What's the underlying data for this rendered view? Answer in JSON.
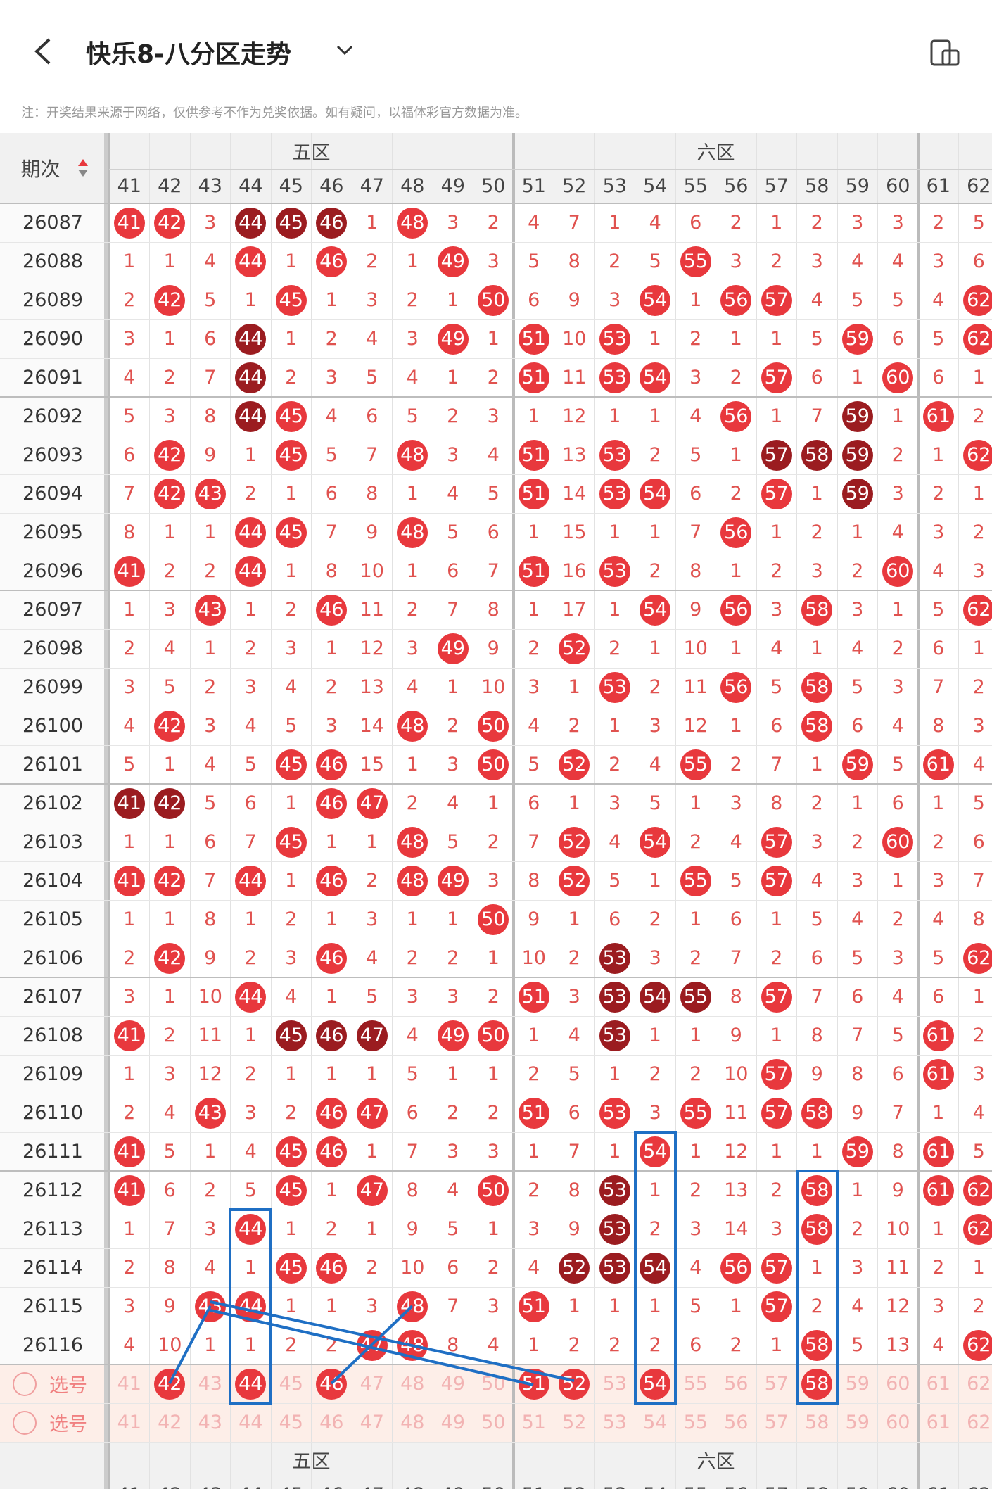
{
  "header": {
    "title": "快乐8-八分区走势",
    "note": "注：开奖结果来源于网络，仅供参考不作为兑奖依据。如有疑问，以福体彩官方数据为准。"
  },
  "table": {
    "issue_label": "期次",
    "zones": [
      "五区",
      "六区"
    ],
    "columns": [
      41,
      42,
      43,
      44,
      45,
      46,
      47,
      48,
      49,
      50,
      51,
      52,
      53,
      54,
      55,
      56,
      57,
      58,
      59,
      60,
      61,
      62
    ],
    "rows": [
      {
        "issue": "26087",
        "cells": [
          41,
          42,
          3,
          44,
          45,
          46,
          1,
          48,
          3,
          2,
          4,
          7,
          1,
          4,
          6,
          2,
          1,
          2,
          3,
          3,
          2,
          5
        ],
        "dark": [
          44,
          45,
          46
        ]
      },
      {
        "issue": "26088",
        "cells": [
          1,
          1,
          4,
          44,
          1,
          46,
          2,
          1,
          49,
          3,
          5,
          8,
          2,
          5,
          55,
          3,
          2,
          3,
          4,
          4,
          3,
          6
        ],
        "dark": []
      },
      {
        "issue": "26089",
        "cells": [
          2,
          42,
          5,
          1,
          45,
          1,
          3,
          2,
          1,
          50,
          6,
          9,
          3,
          54,
          1,
          56,
          57,
          4,
          5,
          5,
          4,
          62
        ],
        "dark": []
      },
      {
        "issue": "26090",
        "cells": [
          3,
          1,
          6,
          44,
          1,
          2,
          4,
          3,
          49,
          1,
          51,
          10,
          53,
          1,
          2,
          1,
          1,
          5,
          59,
          6,
          5,
          62
        ],
        "dark": [
          44
        ]
      },
      {
        "issue": "26091",
        "cells": [
          4,
          2,
          7,
          44,
          2,
          3,
          5,
          4,
          1,
          2,
          51,
          11,
          53,
          54,
          3,
          2,
          57,
          6,
          1,
          60,
          6,
          1
        ],
        "dark": [
          44
        ]
      },
      {
        "issue": "26092",
        "cells": [
          5,
          3,
          8,
          44,
          45,
          4,
          6,
          5,
          2,
          3,
          1,
          12,
          1,
          1,
          4,
          56,
          1,
          7,
          59,
          1,
          61,
          2
        ],
        "dark": [
          44,
          59
        ]
      },
      {
        "issue": "26093",
        "cells": [
          6,
          42,
          9,
          1,
          45,
          5,
          7,
          48,
          3,
          4,
          51,
          13,
          53,
          2,
          5,
          1,
          57,
          58,
          59,
          2,
          1,
          62
        ],
        "dark": [
          57,
          58,
          59
        ]
      },
      {
        "issue": "26094",
        "cells": [
          7,
          42,
          43,
          2,
          1,
          6,
          8,
          1,
          4,
          5,
          51,
          14,
          53,
          54,
          6,
          2,
          57,
          1,
          59,
          3,
          2,
          1
        ],
        "dark": [
          59
        ]
      },
      {
        "issue": "26095",
        "cells": [
          8,
          1,
          1,
          44,
          45,
          7,
          9,
          48,
          5,
          6,
          1,
          15,
          1,
          1,
          7,
          56,
          1,
          2,
          1,
          4,
          3,
          2
        ],
        "dark": []
      },
      {
        "issue": "26096",
        "cells": [
          41,
          2,
          2,
          44,
          1,
          8,
          10,
          1,
          6,
          7,
          51,
          16,
          53,
          2,
          8,
          1,
          2,
          3,
          2,
          60,
          4,
          3
        ],
        "dark": []
      },
      {
        "issue": "26097",
        "cells": [
          1,
          3,
          43,
          1,
          2,
          46,
          11,
          2,
          7,
          8,
          1,
          17,
          1,
          54,
          9,
          56,
          3,
          58,
          3,
          1,
          5,
          62
        ],
        "dark": []
      },
      {
        "issue": "26098",
        "cells": [
          2,
          4,
          1,
          2,
          3,
          1,
          12,
          3,
          49,
          9,
          2,
          52,
          2,
          1,
          10,
          1,
          4,
          1,
          4,
          2,
          6,
          1
        ],
        "dark": []
      },
      {
        "issue": "26099",
        "cells": [
          3,
          5,
          2,
          3,
          4,
          2,
          13,
          4,
          1,
          10,
          3,
          1,
          53,
          2,
          11,
          56,
          5,
          58,
          5,
          3,
          7,
          2
        ],
        "dark": []
      },
      {
        "issue": "26100",
        "cells": [
          4,
          42,
          3,
          4,
          5,
          3,
          14,
          48,
          2,
          50,
          4,
          2,
          1,
          3,
          12,
          1,
          6,
          58,
          6,
          4,
          8,
          3
        ],
        "dark": []
      },
      {
        "issue": "26101",
        "cells": [
          5,
          1,
          4,
          5,
          45,
          46,
          15,
          1,
          3,
          50,
          5,
          52,
          2,
          4,
          55,
          2,
          7,
          1,
          59,
          5,
          61,
          4
        ],
        "dark": []
      },
      {
        "issue": "26102",
        "cells": [
          41,
          42,
          5,
          6,
          1,
          46,
          47,
          2,
          4,
          1,
          6,
          1,
          3,
          5,
          1,
          3,
          8,
          2,
          1,
          6,
          1,
          5
        ],
        "dark": [
          41,
          42
        ]
      },
      {
        "issue": "26103",
        "cells": [
          1,
          1,
          6,
          7,
          45,
          1,
          1,
          48,
          5,
          2,
          7,
          52,
          4,
          54,
          2,
          4,
          57,
          3,
          2,
          60,
          2,
          6
        ],
        "dark": []
      },
      {
        "issue": "26104",
        "cells": [
          41,
          42,
          7,
          44,
          1,
          46,
          2,
          48,
          49,
          3,
          8,
          52,
          5,
          1,
          55,
          5,
          57,
          4,
          3,
          1,
          3,
          7
        ],
        "dark": []
      },
      {
        "issue": "26105",
        "cells": [
          1,
          1,
          8,
          1,
          2,
          1,
          3,
          1,
          1,
          50,
          9,
          1,
          6,
          2,
          1,
          6,
          1,
          5,
          4,
          2,
          4,
          8
        ],
        "dark": []
      },
      {
        "issue": "26106",
        "cells": [
          2,
          42,
          9,
          2,
          3,
          46,
          4,
          2,
          2,
          1,
          10,
          2,
          53,
          3,
          2,
          7,
          2,
          6,
          5,
          3,
          5,
          62
        ],
        "dark": [
          53
        ]
      },
      {
        "issue": "26107",
        "cells": [
          3,
          1,
          10,
          44,
          4,
          1,
          5,
          3,
          3,
          2,
          51,
          3,
          53,
          54,
          55,
          8,
          57,
          7,
          6,
          4,
          6,
          1
        ],
        "dark": [
          53,
          54,
          55
        ]
      },
      {
        "issue": "26108",
        "cells": [
          41,
          2,
          11,
          1,
          45,
          46,
          47,
          4,
          49,
          50,
          1,
          4,
          53,
          1,
          1,
          9,
          1,
          8,
          7,
          5,
          61,
          2
        ],
        "dark": [
          45,
          46,
          47,
          53
        ]
      },
      {
        "issue": "26109",
        "cells": [
          1,
          3,
          12,
          2,
          1,
          1,
          1,
          5,
          1,
          1,
          2,
          5,
          1,
          2,
          2,
          10,
          57,
          9,
          8,
          6,
          61,
          3
        ],
        "dark": []
      },
      {
        "issue": "26110",
        "cells": [
          2,
          4,
          43,
          3,
          2,
          46,
          47,
          6,
          2,
          2,
          51,
          6,
          53,
          3,
          55,
          11,
          57,
          58,
          9,
          7,
          1,
          4
        ],
        "dark": []
      },
      {
        "issue": "26111",
        "cells": [
          41,
          5,
          1,
          4,
          45,
          46,
          1,
          7,
          3,
          3,
          1,
          7,
          1,
          54,
          1,
          12,
          1,
          1,
          59,
          8,
          61,
          5
        ],
        "dark": []
      },
      {
        "issue": "26112",
        "cells": [
          41,
          6,
          2,
          5,
          45,
          1,
          47,
          8,
          4,
          50,
          2,
          8,
          53,
          1,
          2,
          13,
          2,
          58,
          1,
          9,
          61,
          62
        ],
        "dark": [
          53
        ]
      },
      {
        "issue": "26113",
        "cells": [
          1,
          7,
          3,
          44,
          1,
          2,
          1,
          9,
          5,
          1,
          3,
          9,
          53,
          2,
          3,
          14,
          3,
          58,
          2,
          10,
          1,
          62
        ],
        "dark": [
          53
        ]
      },
      {
        "issue": "26114",
        "cells": [
          2,
          8,
          4,
          1,
          45,
          46,
          2,
          10,
          6,
          2,
          4,
          52,
          53,
          54,
          4,
          56,
          57,
          1,
          3,
          11,
          2,
          1
        ],
        "dark": [
          52,
          53,
          54
        ]
      },
      {
        "issue": "26115",
        "cells": [
          3,
          9,
          43,
          44,
          1,
          1,
          3,
          48,
          7,
          3,
          51,
          1,
          1,
          1,
          5,
          1,
          57,
          2,
          4,
          12,
          3,
          2
        ],
        "dark": []
      },
      {
        "issue": "26116",
        "cells": [
          4,
          10,
          1,
          1,
          2,
          2,
          47,
          48,
          8,
          4,
          1,
          2,
          2,
          2,
          6,
          2,
          1,
          58,
          5,
          13,
          4,
          62
        ],
        "dark": []
      }
    ],
    "select_label": "选号",
    "selections": [
      [
        42,
        44,
        46,
        51,
        52,
        54,
        58
      ],
      []
    ],
    "bottom_issue_label": "-"
  }
}
